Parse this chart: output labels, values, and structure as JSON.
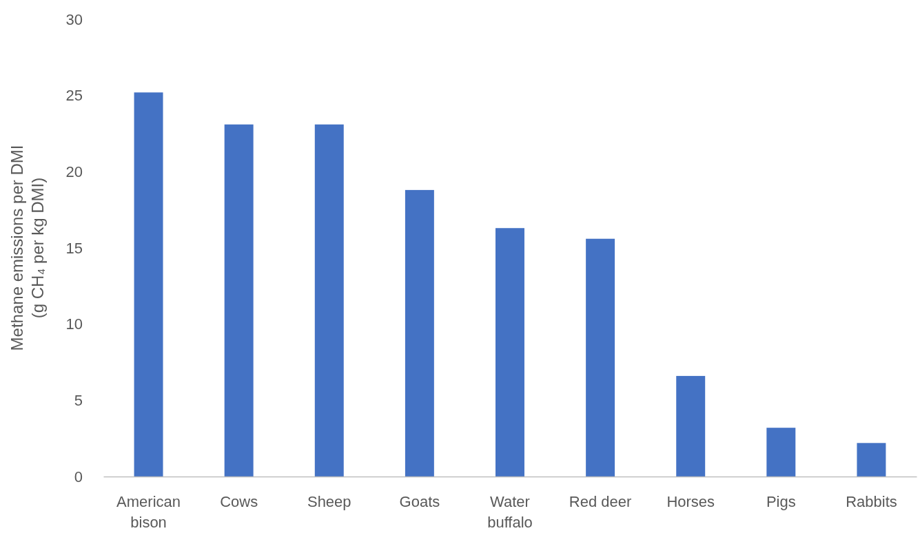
{
  "chart_data": {
    "type": "bar",
    "categories": [
      "American bison",
      "Cows",
      "Sheep",
      "Goats",
      "Water buffalo",
      "Red deer",
      "Horses",
      "Pigs",
      "Rabbits"
    ],
    "values": [
      25.2,
      23.1,
      23.1,
      18.8,
      16.3,
      15.6,
      6.6,
      3.2,
      2.2
    ],
    "color": "#4472c4",
    "ylabel": "Methane emissions per DMI\n(g CH₄ per kg DMI)",
    "ylim": [
      0,
      30
    ],
    "yticks": [
      0,
      5,
      10,
      15,
      20,
      25,
      30
    ],
    "grid": false
  }
}
